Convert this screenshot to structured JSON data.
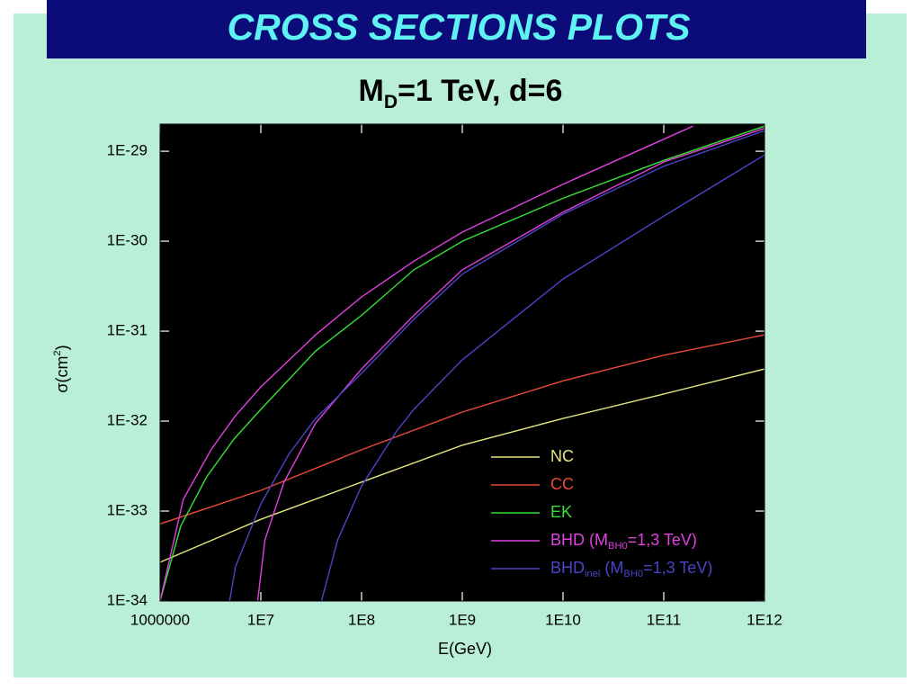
{
  "slide": {
    "title": "CROSS SECTIONS PLOTS"
  },
  "chart_data": {
    "type": "line",
    "title": [
      "M",
      "D",
      "=1 TeV, d=6"
    ],
    "xlabel": "E(GeV)",
    "ylabel": [
      "σ(cm",
      "2",
      ")"
    ],
    "xscale": "log",
    "yscale": "log",
    "xlim": [
      1000000,
      1000000000000
    ],
    "ylim": [
      1e-34,
      2e-29
    ],
    "xticks": [
      1000000,
      {
        "value": 10000000,
        "label": "1E7"
      },
      {
        "value": 100000000,
        "label": "1E8"
      },
      {
        "value": 1000000000,
        "label": "1E9"
      },
      {
        "value": 10000000000,
        "label": "1E10"
      },
      {
        "value": 100000000000,
        "label": "1E11"
      },
      {
        "value": 1000000000000,
        "label": "1E12"
      }
    ],
    "yticks": [
      {
        "value": 1e-34,
        "label": "1E-34"
      },
      {
        "value": 1e-33,
        "label": "1E-33"
      },
      {
        "value": 1e-32,
        "label": "1E-32"
      },
      {
        "value": 1e-31,
        "label": "1E-31"
      },
      {
        "value": 1e-30,
        "label": "1E-30"
      },
      {
        "value": 1e-29,
        "label": "1E-29"
      }
    ],
    "series": [
      {
        "name": [
          "NC"
        ],
        "color": "#e6e680",
        "x": [
          1000000,
          10000000,
          100000000,
          1000000000,
          10000000000,
          100000000000,
          1000000000000
        ],
        "values": [
          2.7e-34,
          8.1e-34,
          2.1e-33,
          5.4e-33,
          1.07e-32,
          2e-32,
          3.8e-32
        ]
      },
      {
        "name": [
          "CC"
        ],
        "color": "#e84a36",
        "x": [
          1000000,
          10000000,
          100000000,
          1000000000,
          10000000000,
          100000000000,
          1000000000000
        ],
        "values": [
          7.2e-34,
          1.7e-33,
          4.8e-33,
          1.26e-32,
          2.8e-32,
          5.4e-32,
          9.1e-32
        ]
      },
      {
        "name": [
          "EK"
        ],
        "color": "#36e036",
        "x": [
          1000000,
          1600000,
          2900000,
          5400000,
          10000000,
          35000000,
          100000000,
          330000000,
          1000000000,
          10000000000,
          100000000000,
          1000000000000
        ],
        "values": [
          1e-34,
          6.8e-34,
          2.4e-33,
          6.3e-33,
          1.35e-32,
          6e-32,
          1.5e-31,
          4.8e-31,
          1e-30,
          3e-30,
          7.9e-30,
          1.9e-29
        ]
      },
      {
        "name": [
          "BHD (M",
          "BH0",
          "=1,3 TeV)"
        ],
        "color": "#e040e0",
        "x": [
          1000000,
          1700000,
          3200000,
          5600000,
          10000000,
          35000000,
          100000000,
          330000000,
          1000000000,
          10000000000,
          195000000000,
          null,
          9300000,
          11000000,
          17000000,
          35000000,
          100000000,
          330000000,
          1000000000,
          10000000000,
          100000000000,
          1000000000000
        ],
        "values": [
          1e-34,
          1.35e-33,
          4.8e-33,
          1.15e-32,
          2.4e-32,
          9.1e-32,
          2.4e-31,
          6e-31,
          1.26e-30,
          4.3e-30,
          1.9e-29,
          null,
          1e-34,
          4.8e-34,
          2.1e-33,
          9.5e-33,
          3.8e-32,
          1.5e-31,
          4.8e-31,
          2.1e-30,
          7.6e-30,
          1.8e-29
        ]
      },
      {
        "name": [
          "BHD",
          "inel",
          " (M",
          "BH0",
          "=1,3 TeV)"
        ],
        "color": "#4a44c8",
        "x": [
          4900000,
          5600000,
          10000000,
          19000000,
          35000000,
          100000000,
          330000000,
          1000000000,
          10000000000,
          100000000000,
          1000000000000,
          null,
          40000000,
          58000000,
          100000000,
          220000000,
          330000000,
          1000000000,
          10000000000,
          100000000000,
          1000000000000
        ],
        "values": [
          1e-34,
          2.4e-34,
          1.2e-33,
          4.3e-33,
          1.07e-32,
          3.4e-32,
          1.35e-31,
          4.3e-31,
          2e-30,
          6.8e-30,
          1.7e-29,
          null,
          1e-34,
          4.8e-34,
          1.9e-33,
          7.6e-33,
          1.35e-32,
          4.8e-32,
          3.8e-31,
          1.9e-30,
          9.1e-30
        ]
      }
    ]
  }
}
